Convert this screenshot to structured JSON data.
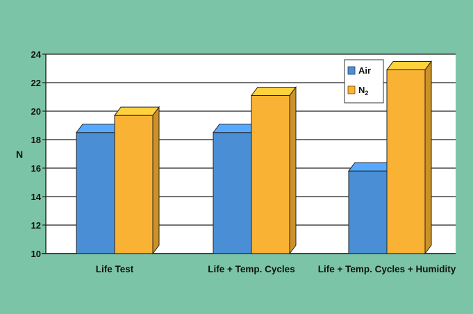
{
  "colors": {
    "background": "#7cc4a8",
    "plot_background": "#ffffff",
    "air": "#4a8fd6",
    "n2": "#f9b233",
    "gridline": "#222222"
  },
  "chart_data": {
    "type": "bar",
    "title": "",
    "xlabel": "",
    "ylabel": "N",
    "ylim": [
      10,
      24
    ],
    "yticks": [
      10,
      12,
      14,
      16,
      18,
      20,
      22,
      24
    ],
    "grid": true,
    "style": "3d",
    "legend_position": "top-right",
    "categories": [
      "Life Test",
      "Life + Temp. Cycles",
      "Life + Temp. Cycles + Humidity"
    ],
    "series": [
      {
        "name": "Air",
        "color": "#4a8fd6",
        "values": [
          18.5,
          18.5,
          15.8
        ]
      },
      {
        "name": "N",
        "name_subscript": "2",
        "color": "#f9b233",
        "values": [
          19.7,
          21.1,
          22.9
        ]
      }
    ]
  }
}
